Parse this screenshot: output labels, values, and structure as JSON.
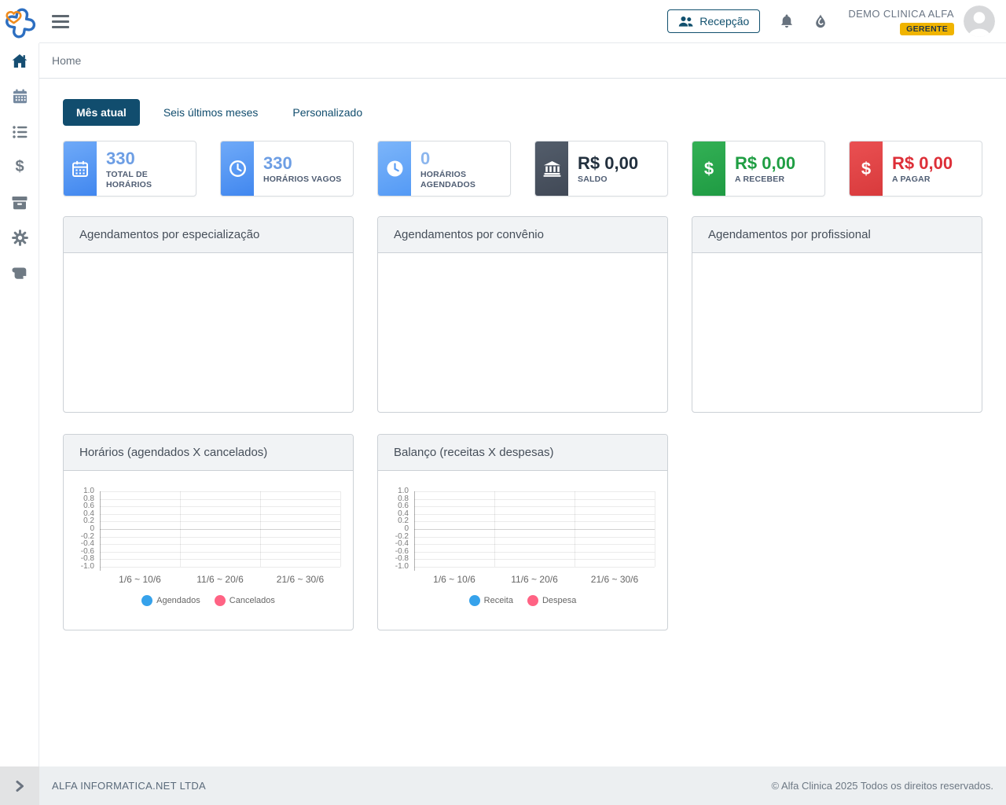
{
  "header": {
    "recepcao_button": {
      "label": "Recepção",
      "icon": "users-icon"
    },
    "icons": [
      "bell-icon",
      "flame-drop-icon"
    ],
    "user": {
      "name": "DEMO CLINICA ALFA",
      "role_badge": "GERENTE"
    }
  },
  "breadcrumb": {
    "current": "Home"
  },
  "sidebar": {
    "items": [
      {
        "icon": "home-icon",
        "active": true
      },
      {
        "icon": "calendar-icon",
        "active": false
      },
      {
        "icon": "list-icon",
        "active": false
      },
      {
        "icon": "dollar-icon",
        "active": false
      },
      {
        "icon": "archive-icon",
        "active": false
      },
      {
        "icon": "gear-icon",
        "active": false
      },
      {
        "icon": "contract-icon",
        "active": false
      }
    ],
    "collapse_toggle_icon": "chevron-right-icon"
  },
  "filter_tabs": [
    {
      "label": "Mês atual",
      "active": true
    },
    {
      "label": "Seis últimos meses",
      "active": false
    },
    {
      "label": "Personalizado",
      "active": false
    }
  ],
  "stat_cards": [
    {
      "icon": "calendar-icon",
      "value": "330",
      "label": "TOTAL DE HORÁRIOS",
      "theme": "blue"
    },
    {
      "icon": "clock-outline-icon",
      "value": "330",
      "label": "HORÁRIOS VAGOS",
      "theme": "blue"
    },
    {
      "icon": "clock-solid-icon",
      "value": "0",
      "label": "HORÁRIOS AGENDADOS",
      "theme": "lightblue"
    },
    {
      "icon": "bank-icon",
      "value": "R$ 0,00",
      "label": "SALDO",
      "theme": "slate"
    },
    {
      "icon": "dollar-icon",
      "value": "R$ 0,00",
      "label": "A RECEBER",
      "theme": "green"
    },
    {
      "icon": "dollar-icon",
      "value": "R$ 0,00",
      "label": "A PAGAR",
      "theme": "red"
    }
  ],
  "empty_panels": [
    {
      "title": "Agendamentos por especialização"
    },
    {
      "title": "Agendamentos por convênio"
    },
    {
      "title": "Agendamentos por profissional"
    }
  ],
  "chart_data": [
    {
      "type": "line",
      "title": "Horários (agendados X cancelados)",
      "categories": [
        "1/6 ~ 10/6",
        "11/6 ~ 20/6",
        "21/6 ~ 30/6"
      ],
      "series": [
        {
          "name": "Agendados",
          "color": "#36a2eb",
          "values": []
        },
        {
          "name": "Cancelados",
          "color": "#ff6384",
          "values": []
        }
      ],
      "ylim": [
        -1.0,
        1.0
      ],
      "ytick_step": 0.2,
      "grid": true,
      "legend_position": "bottom"
    },
    {
      "type": "line",
      "title": "Balanço (receitas X despesas)",
      "categories": [
        "1/6 ~ 10/6",
        "11/6 ~ 20/6",
        "21/6 ~ 30/6"
      ],
      "series": [
        {
          "name": "Receita",
          "color": "#36a2eb",
          "values": []
        },
        {
          "name": "Despesa",
          "color": "#ff6384",
          "values": []
        }
      ],
      "ylim": [
        -1.0,
        1.0
      ],
      "ytick_step": 0.2,
      "grid": true,
      "legend_position": "bottom"
    }
  ],
  "footer": {
    "left": "ALFA INFORMATICA.NET LTDA",
    "right": "© Alfa Clinica 2025 Todos os direitos reservados."
  },
  "colors": {
    "brand_navy": "#114d6e",
    "brand_blue": "#2d6fc1",
    "brand_orange": "#f08c1e",
    "badge_amber": "#f0b400",
    "positive_green": "#1f9e43",
    "negative_red": "#dd2f38",
    "stat_blue": "#6d9ee4"
  }
}
